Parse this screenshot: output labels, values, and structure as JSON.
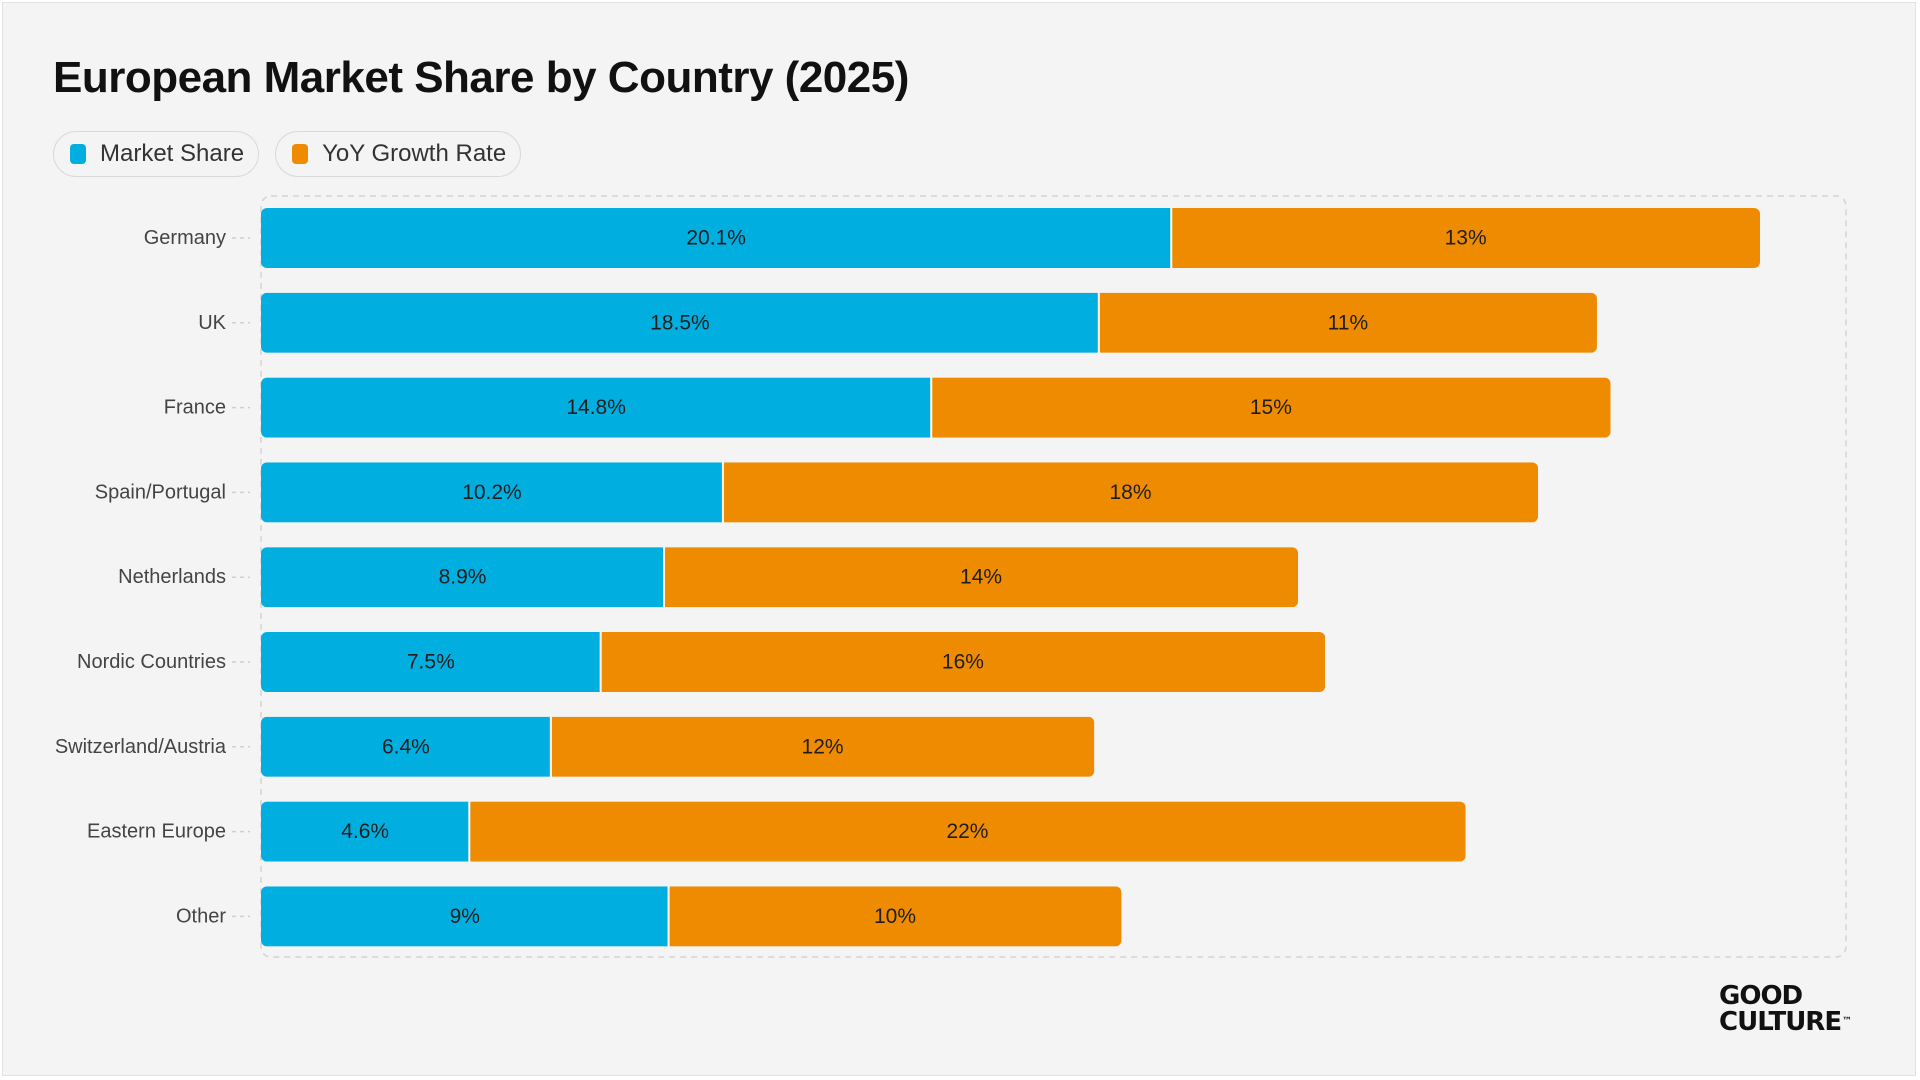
{
  "chart_data": {
    "type": "bar",
    "orientation": "horizontal",
    "stacked": true,
    "title": "European Market Share by Country (2025)",
    "xlabel": "",
    "ylabel": "",
    "categories": [
      "Germany",
      "UK",
      "France",
      "Spain/Portugal",
      "Netherlands",
      "Nordic Countries",
      "Switzerland/Austria",
      "Eastern Europe",
      "Other"
    ],
    "series": [
      {
        "name": "Market Share",
        "color": "#00aee0",
        "values": [
          20.1,
          18.5,
          14.8,
          10.2,
          8.9,
          7.5,
          6.4,
          4.6,
          9
        ],
        "labels": [
          "20.1%",
          "18.5%",
          "14.8%",
          "10.2%",
          "8.9%",
          "7.5%",
          "6.4%",
          "4.6%",
          "9%"
        ]
      },
      {
        "name": "YoY Growth Rate",
        "color": "#ee8b00",
        "values": [
          13,
          11,
          15,
          18,
          14,
          16,
          12,
          22,
          10
        ],
        "labels": [
          "13%",
          "11%",
          "15%",
          "18%",
          "14%",
          "16%",
          "12%",
          "22%",
          "10%"
        ]
      }
    ],
    "xlim": [
      0,
      35
    ],
    "grid": false,
    "legend": "top-left"
  },
  "legend": {
    "market_share": "Market Share",
    "growth": "YoY Growth Rate"
  },
  "brand": {
    "line1": "GOOD",
    "line2": "CULTURE",
    "mark": "™"
  }
}
